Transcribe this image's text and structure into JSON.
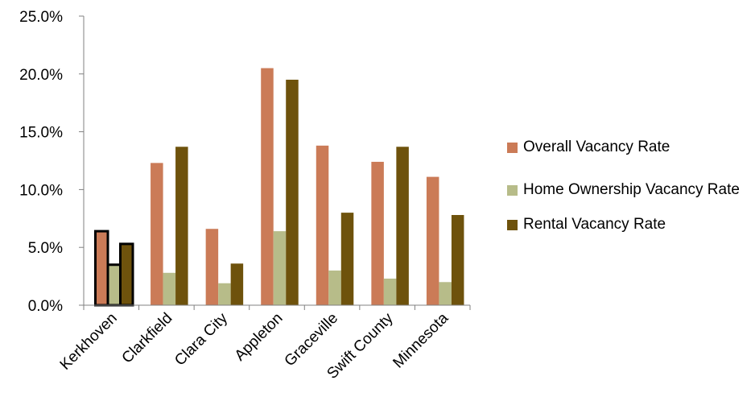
{
  "chart_data": {
    "type": "bar",
    "title": "",
    "xlabel": "",
    "ylabel": "",
    "ylim": [
      0,
      25
    ],
    "y_ticks": [
      "0.0%",
      "5.0%",
      "10.0%",
      "15.0%",
      "20.0%",
      "25.0%"
    ],
    "grid": false,
    "legend_position": "right",
    "categories": [
      "Kerkhoven",
      "Clarkfield",
      "Clara City",
      "Appleton",
      "Graceville",
      "Swift County",
      "Minnesota"
    ],
    "highlighted_category": "Kerkhoven",
    "series": [
      {
        "name": "Overall Vacancy Rate",
        "color": "#CB7B57",
        "values": [
          6.4,
          12.3,
          6.6,
          20.5,
          13.8,
          12.4,
          11.1
        ]
      },
      {
        "name": "Home Ownership Vacancy Rate",
        "color": "#B7BC89",
        "values": [
          3.5,
          2.8,
          1.9,
          6.4,
          3.0,
          2.3,
          2.0
        ]
      },
      {
        "name": "Rental Vacancy Rate",
        "color": "#6E520C",
        "values": [
          5.3,
          13.7,
          3.6,
          19.5,
          8.0,
          13.7,
          7.8
        ]
      }
    ]
  }
}
